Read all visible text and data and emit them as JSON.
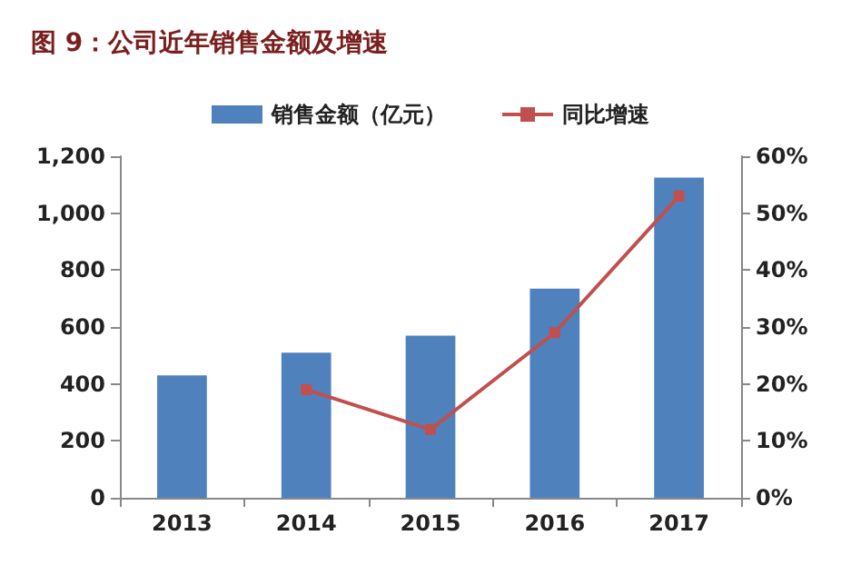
{
  "chart_data": {
    "type": "bar",
    "title": "图 9：公司近年销售金额及增速",
    "categories": [
      "2013",
      "2014",
      "2015",
      "2016",
      "2017"
    ],
    "series": [
      {
        "name": "销售金额（亿元）",
        "color": "#4f81bd",
        "values": [
          430,
          510,
          570,
          735,
          1125
        ]
      },
      {
        "name": "同比增速",
        "type": "line",
        "axis": "y2",
        "color": "#c0504d",
        "values": [
          null,
          19,
          12,
          29,
          53
        ]
      }
    ],
    "ylim": [
      0,
      1200
    ],
    "yticks": [
      {
        "value": 0,
        "label": "0"
      },
      {
        "value": 200,
        "label": "200"
      },
      {
        "value": 400,
        "label": "400"
      },
      {
        "value": 600,
        "label": "600"
      },
      {
        "value": 800,
        "label": "800"
      },
      {
        "value": 1000,
        "label": "1,000"
      },
      {
        "value": 1200,
        "label": "1,200"
      }
    ],
    "y2lim": [
      0,
      60
    ],
    "y2ticks": [
      {
        "value": 0,
        "label": "0%"
      },
      {
        "value": 10,
        "label": "10%"
      },
      {
        "value": 20,
        "label": "20%"
      },
      {
        "value": 30,
        "label": "30%"
      },
      {
        "value": 40,
        "label": "40%"
      },
      {
        "value": 50,
        "label": "50%"
      },
      {
        "value": 60,
        "label": "60%"
      }
    ],
    "grid": false,
    "legend": "top",
    "marker": "square",
    "line_style": "solid"
  }
}
